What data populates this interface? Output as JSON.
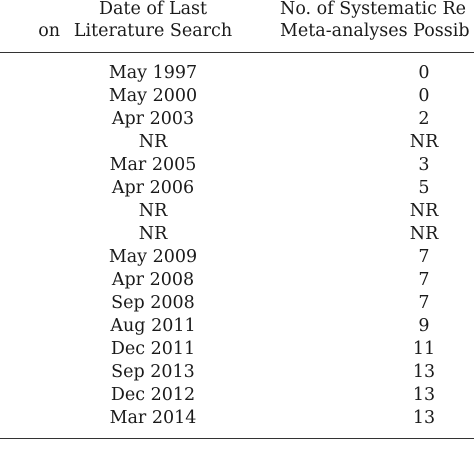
{
  "header": {
    "left_partial": "on",
    "date_line1": "Date of Last",
    "date_line2": "Literature Search",
    "count_line1": "No. of Systematic Re",
    "count_line2": "Meta-analyses Possib"
  },
  "rows": [
    {
      "date": "May 1997",
      "count": "0"
    },
    {
      "date": "May 2000",
      "count": "0"
    },
    {
      "date": "Apr 2003",
      "count": "2"
    },
    {
      "date": "NR",
      "count": "NR"
    },
    {
      "date": "Mar 2005",
      "count": "3"
    },
    {
      "date": "Apr 2006",
      "count": "5"
    },
    {
      "date": "NR",
      "count": "NR"
    },
    {
      "date": "NR",
      "count": "NR"
    },
    {
      "date": "May 2009",
      "count": "7"
    },
    {
      "date": "Apr 2008",
      "count": "7"
    },
    {
      "date": "Sep 2008",
      "count": "7"
    },
    {
      "date": "Aug 2011",
      "count": "9"
    },
    {
      "date": "Dec 2011",
      "count": "11"
    },
    {
      "date": "Sep 2013",
      "count": "13"
    },
    {
      "date": "Dec 2012",
      "count": "13"
    },
    {
      "date": "Mar 2014",
      "count": "13"
    }
  ]
}
